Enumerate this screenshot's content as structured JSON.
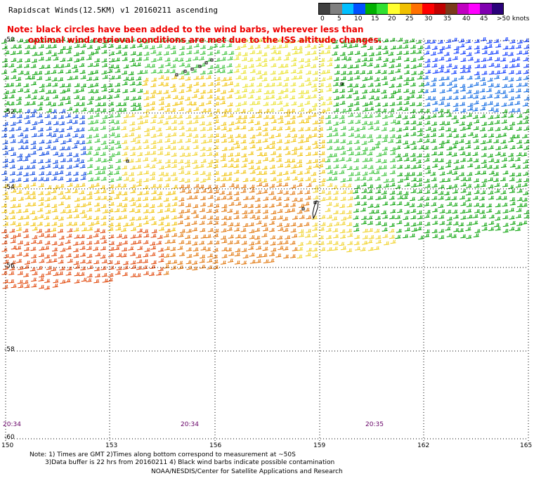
{
  "header": {
    "title": "Rapidscat Winds(12.5KM) v1 20160211 ascending",
    "note_line1": "Note: black circles have been added to the wind barbs, wherever less than",
    "note_line2": "optimal wind retrieval conditions are met due to the ISS altitude changes."
  },
  "colorbar": {
    "colors": [
      "#404040",
      "#7f7f7f",
      "#00bfff",
      "#0050ff",
      "#00b000",
      "#30e030",
      "#ffff30",
      "#f0c000",
      "#ff7000",
      "#ff0000",
      "#c00000",
      "#7a3a1a",
      "#c000c0",
      "#ff00ff",
      "#8000b0",
      "#2a007a"
    ],
    "labels": [
      "0",
      "5",
      "10",
      "15",
      "20",
      "25",
      "30",
      "35",
      "40",
      "45",
      ">50 knots"
    ]
  },
  "axes": {
    "lat_labels": [
      "-50",
      "-52",
      "-54",
      "-56",
      "-58",
      "-60"
    ],
    "lon_labels": [
      "150",
      "153",
      "156",
      "159",
      "162",
      "165"
    ],
    "time_labels": [
      "20:34",
      "20:34",
      "20:35"
    ]
  },
  "footer": {
    "line1": "Note: 1) Times are GMT 2)Times along bottom correspond to measurement at ~50S",
    "line2": "3)Data buffer is 22 hrs from 20160211 4) Black wind barbs indicate possible contamination",
    "line3": "NOAA/NESDIS/Center for Satellite Applications and Research"
  }
}
